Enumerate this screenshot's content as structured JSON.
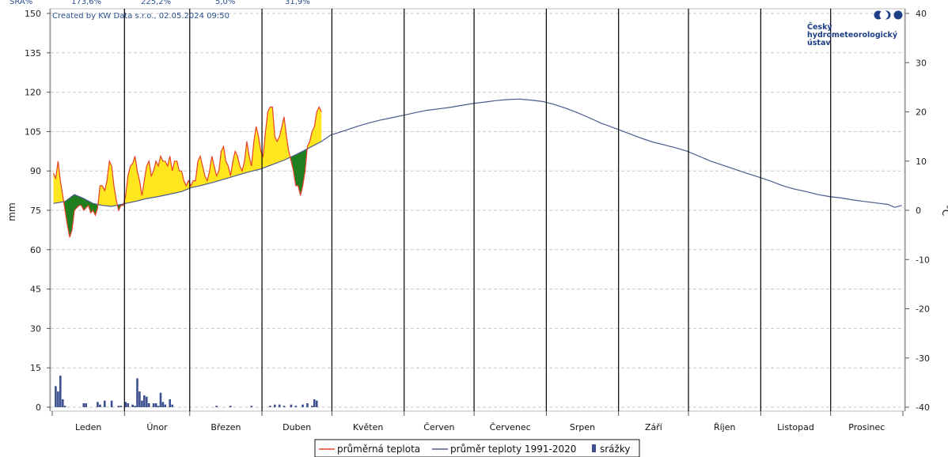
{
  "header": {
    "sra_label": "SRA%",
    "sra_values": [
      "173,6%",
      "225,2%",
      "5,0%",
      "31,9%"
    ]
  },
  "credit": "Created by KW Data s.r.o., 02.05.2024 09:50",
  "brand": {
    "line1": "Český",
    "line2": "hydrometeorologický",
    "line3": "ústav",
    "color": "#1d3f86"
  },
  "colors": {
    "temp": "#e8402a",
    "normal": "#4a5a8a",
    "precip": "#3d4f8e",
    "warm_fill": "#ffe61e",
    "cold_fill": "#1f7f1f"
  },
  "chart_data": {
    "type": "line",
    "x_categories": [
      "Leden",
      "Únor",
      "Březen",
      "Duben",
      "Květen",
      "Červen",
      "Červenec",
      "Srpen",
      "Září",
      "Říjen",
      "Listopad",
      "Prosinec"
    ],
    "y_left": {
      "label": "mm",
      "lim": [
        0,
        150
      ],
      "ticks": [
        0,
        15,
        30,
        45,
        60,
        75,
        90,
        105,
        120,
        135,
        150
      ]
    },
    "y_right": {
      "label": "°C",
      "lim": [
        -40,
        40
      ],
      "ticks": [
        -40,
        -30,
        -20,
        -10,
        0,
        10,
        20,
        30,
        40
      ]
    },
    "grid": "horizontal dashed",
    "legend_position": "bottom-center",
    "series": [
      {
        "name": "průměrná teplota",
        "axis": "right",
        "points": [
          [
            1,
            7.5
          ],
          [
            2,
            6.5
          ],
          [
            3,
            10
          ],
          [
            4,
            6
          ],
          [
            5,
            3
          ],
          [
            6,
            0
          ],
          [
            7,
            -3
          ],
          [
            8,
            -5.5
          ],
          [
            9,
            -4
          ],
          [
            10,
            0
          ],
          [
            11,
            0.5
          ],
          [
            12,
            1
          ],
          [
            13,
            1
          ],
          [
            14,
            0
          ],
          [
            15,
            0.5
          ],
          [
            16,
            1
          ],
          [
            17,
            -0.5
          ],
          [
            18,
            0
          ],
          [
            19,
            -1
          ],
          [
            20,
            0.5
          ],
          [
            21,
            5
          ],
          [
            22,
            5
          ],
          [
            23,
            4
          ],
          [
            24,
            6
          ],
          [
            25,
            10
          ],
          [
            26,
            9
          ],
          [
            27,
            5
          ],
          [
            28,
            2
          ],
          [
            29,
            0
          ],
          [
            30,
            1
          ],
          [
            31,
            1
          ],
          [
            32,
            3
          ],
          [
            33,
            7
          ],
          [
            34,
            9
          ],
          [
            35,
            9.5
          ],
          [
            36,
            11
          ],
          [
            37,
            8
          ],
          [
            38,
            6
          ],
          [
            39,
            3
          ],
          [
            40,
            6
          ],
          [
            41,
            9
          ],
          [
            42,
            10
          ],
          [
            43,
            7
          ],
          [
            44,
            8
          ],
          [
            45,
            10
          ],
          [
            46,
            9
          ],
          [
            47,
            11
          ],
          [
            48,
            10
          ],
          [
            49,
            10
          ],
          [
            50,
            9
          ],
          [
            51,
            11
          ],
          [
            52,
            8
          ],
          [
            53,
            10
          ],
          [
            54,
            10
          ],
          [
            55,
            8
          ],
          [
            56,
            8
          ],
          [
            57,
            6
          ],
          [
            58,
            5
          ],
          [
            59,
            6
          ],
          [
            60,
            5
          ],
          [
            61,
            6
          ],
          [
            62,
            6
          ],
          [
            63,
            10
          ],
          [
            64,
            11
          ],
          [
            65,
            9
          ],
          [
            66,
            7
          ],
          [
            67,
            6
          ],
          [
            68,
            8
          ],
          [
            69,
            11
          ],
          [
            70,
            9
          ],
          [
            71,
            7
          ],
          [
            72,
            8
          ],
          [
            73,
            12
          ],
          [
            74,
            13
          ],
          [
            75,
            10
          ],
          [
            76,
            9
          ],
          [
            77,
            7
          ],
          [
            78,
            10
          ],
          [
            79,
            12
          ],
          [
            80,
            11
          ],
          [
            81,
            9
          ],
          [
            82,
            8
          ],
          [
            83,
            10
          ],
          [
            84,
            14
          ],
          [
            85,
            11
          ],
          [
            86,
            9
          ],
          [
            87,
            14
          ],
          [
            88,
            17
          ],
          [
            89,
            15
          ],
          [
            90,
            12
          ],
          [
            91,
            11
          ],
          [
            92,
            16
          ],
          [
            93,
            20
          ],
          [
            94,
            21
          ],
          [
            95,
            21
          ],
          [
            96,
            15
          ],
          [
            97,
            14
          ],
          [
            98,
            15
          ],
          [
            99,
            17
          ],
          [
            100,
            19
          ],
          [
            101,
            15
          ],
          [
            102,
            12
          ],
          [
            103,
            10
          ],
          [
            104,
            8
          ],
          [
            105,
            5
          ],
          [
            106,
            5
          ],
          [
            107,
            3
          ],
          [
            108,
            5
          ],
          [
            109,
            8
          ],
          [
            110,
            13
          ],
          [
            111,
            14
          ],
          [
            112,
            16
          ],
          [
            113,
            17
          ],
          [
            114,
            20
          ],
          [
            115,
            21
          ],
          [
            116,
            20
          ]
        ]
      },
      {
        "name": "průměr teploty 1991-2020",
        "axis": "right",
        "points": [
          [
            1,
            1.4
          ],
          [
            6,
            1.8
          ],
          [
            10,
            3.2
          ],
          [
            14,
            2.4
          ],
          [
            18,
            1.4
          ],
          [
            22,
            1.0
          ],
          [
            26,
            0.8
          ],
          [
            31,
            1.3
          ],
          [
            36,
            1.8
          ],
          [
            41,
            2.4
          ],
          [
            46,
            2.8
          ],
          [
            51,
            3.3
          ],
          [
            56,
            3.8
          ],
          [
            60,
            4.6
          ],
          [
            64,
            5.0
          ],
          [
            69,
            5.6
          ],
          [
            74,
            6.3
          ],
          [
            79,
            7.0
          ],
          [
            84,
            7.7
          ],
          [
            90,
            8.4
          ],
          [
            95,
            9.3
          ],
          [
            100,
            10.2
          ],
          [
            105,
            11.3
          ],
          [
            110,
            12.5
          ],
          [
            116,
            14.0
          ],
          [
            120,
            15.3
          ],
          [
            126,
            16.2
          ],
          [
            131,
            17.0
          ],
          [
            136,
            17.7
          ],
          [
            141,
            18.3
          ],
          [
            146,
            18.8
          ],
          [
            151,
            19.3
          ],
          [
            156,
            19.8
          ],
          [
            161,
            20.3
          ],
          [
            166,
            20.6
          ],
          [
            171,
            20.9
          ],
          [
            176,
            21.3
          ],
          [
            181,
            21.7
          ],
          [
            186,
            22.0
          ],
          [
            191,
            22.3
          ],
          [
            196,
            22.5
          ],
          [
            201,
            22.6
          ],
          [
            206,
            22.4
          ],
          [
            211,
            22.1
          ],
          [
            216,
            21.5
          ],
          [
            221,
            20.7
          ],
          [
            226,
            19.8
          ],
          [
            231,
            18.8
          ],
          [
            236,
            17.7
          ],
          [
            243,
            16.5
          ],
          [
            248,
            15.6
          ],
          [
            253,
            14.7
          ],
          [
            258,
            13.9
          ],
          [
            263,
            13.3
          ],
          [
            268,
            12.7
          ],
          [
            273,
            12.0
          ],
          [
            278,
            11.0
          ],
          [
            283,
            10.0
          ],
          [
            288,
            9.2
          ],
          [
            293,
            8.4
          ],
          [
            298,
            7.6
          ],
          [
            304,
            6.7
          ],
          [
            309,
            5.9
          ],
          [
            314,
            5.0
          ],
          [
            319,
            4.3
          ],
          [
            324,
            3.8
          ],
          [
            329,
            3.2
          ],
          [
            334,
            2.8
          ],
          [
            339,
            2.5
          ],
          [
            344,
            2.1
          ],
          [
            349,
            1.8
          ],
          [
            354,
            1.5
          ],
          [
            359,
            1.2
          ],
          [
            362,
            0.6
          ],
          [
            365,
            1.0
          ]
        ]
      },
      {
        "name": "srážky",
        "axis": "left",
        "type": "bar",
        "points": [
          [
            2,
            8.0
          ],
          [
            3,
            6.0
          ],
          [
            4,
            12.0
          ],
          [
            5,
            3.0
          ],
          [
            6,
            0.5
          ],
          [
            14,
            1.5
          ],
          [
            15,
            1.5
          ],
          [
            20,
            2.0
          ],
          [
            21,
            1.0
          ],
          [
            23,
            2.5
          ],
          [
            26,
            2.5
          ],
          [
            29,
            0.5
          ],
          [
            30,
            0.5
          ],
          [
            32,
            2.0
          ],
          [
            33,
            1.5
          ],
          [
            35,
            1.0
          ],
          [
            36,
            0.5
          ],
          [
            37,
            11.0
          ],
          [
            38,
            6.0
          ],
          [
            39,
            2.5
          ],
          [
            40,
            4.5
          ],
          [
            41,
            4.0
          ],
          [
            42,
            1.5
          ],
          [
            44,
            1.5
          ],
          [
            45,
            1.5
          ],
          [
            46,
            0.5
          ],
          [
            47,
            5.5
          ],
          [
            48,
            2.0
          ],
          [
            49,
            1.0
          ],
          [
            51,
            3.0
          ],
          [
            52,
            1.0
          ],
          [
            71,
            0.5
          ],
          [
            77,
            0.5
          ],
          [
            86,
            0.5
          ],
          [
            94,
            0.5
          ],
          [
            96,
            1.0
          ],
          [
            98,
            1.0
          ],
          [
            100,
            0.5
          ],
          [
            103,
            1.0
          ],
          [
            105,
            0.5
          ],
          [
            108,
            1.0
          ],
          [
            110,
            1.5
          ],
          [
            112,
            0.5
          ],
          [
            113,
            3.0
          ],
          [
            114,
            2.5
          ]
        ]
      }
    ]
  },
  "legend": {
    "items": [
      {
        "label": "průměrná teplota",
        "kind": "line",
        "color": "#e8402a"
      },
      {
        "label": "průměr teploty 1991-2020",
        "kind": "line",
        "color": "#4a5a8a"
      },
      {
        "label": "srážky",
        "kind": "bar",
        "color": "#3d4f8e"
      }
    ]
  }
}
